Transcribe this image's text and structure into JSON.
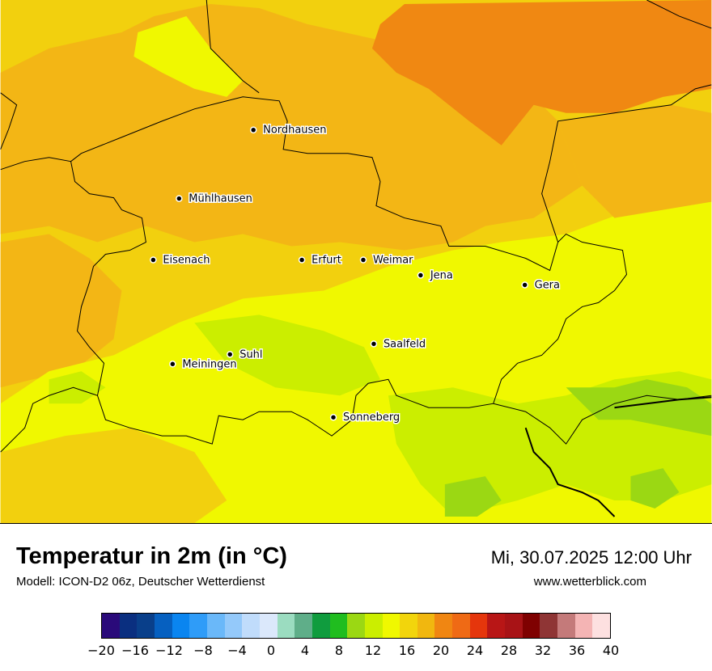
{
  "title": "Temperatur in 2m (in °C)",
  "subtitle": "Modell: ICON-D2 06z, Deutscher Wetterdienst",
  "datetime": "Mi, 30.07.2025 12:00 Uhr",
  "website": "www.wetterblick.com",
  "cities": [
    {
      "id": "nordhausen",
      "name": "Nordhausen"
    },
    {
      "id": "muehlhausen",
      "name": "Mühlhausen"
    },
    {
      "id": "eisenach",
      "name": "Eisenach"
    },
    {
      "id": "erfurt",
      "name": "Erfurt"
    },
    {
      "id": "weimar",
      "name": "Weimar"
    },
    {
      "id": "jena",
      "name": "Jena"
    },
    {
      "id": "gera",
      "name": "Gera"
    },
    {
      "id": "saalfeld",
      "name": "Saalfeld"
    },
    {
      "id": "suhl",
      "name": "Suhl"
    },
    {
      "id": "meiningen",
      "name": "Meiningen"
    },
    {
      "id": "sonneberg",
      "name": "Sonneberg"
    }
  ],
  "colorbar": {
    "min": -20,
    "max": 40,
    "step": 2,
    "ticks": [
      "−20",
      "−16",
      "−12",
      "−8",
      "−4",
      "0",
      "4",
      "8",
      "12",
      "16",
      "20",
      "24",
      "28",
      "32",
      "36",
      "40"
    ],
    "colors": [
      "#2a0a7a",
      "#0a2f80",
      "#093f8a",
      "#0660c0",
      "#0a85f0",
      "#2f9cf8",
      "#6ab8f9",
      "#94c9fa",
      "#c0dcfb",
      "#dbe8fb",
      "#9bdcc0",
      "#5fae89",
      "#109c3e",
      "#20bd1f",
      "#9bd813",
      "#cbee00",
      "#f0f800",
      "#f2d50c",
      "#f1b70f",
      "#f08612",
      "#ef6a15",
      "#e5360c",
      "#b81616",
      "#a81316",
      "#7f0101",
      "#8f3535",
      "#c47a7a",
      "#f4b4b4",
      "#fde0e0"
    ]
  },
  "map_colors": {
    "orange_dark": "#f08812",
    "orange": "#f3b615",
    "gold": "#f2d00e",
    "yellow": "#f0f800",
    "yellow_green": "#cbee00",
    "light_green": "#9bd813"
  }
}
